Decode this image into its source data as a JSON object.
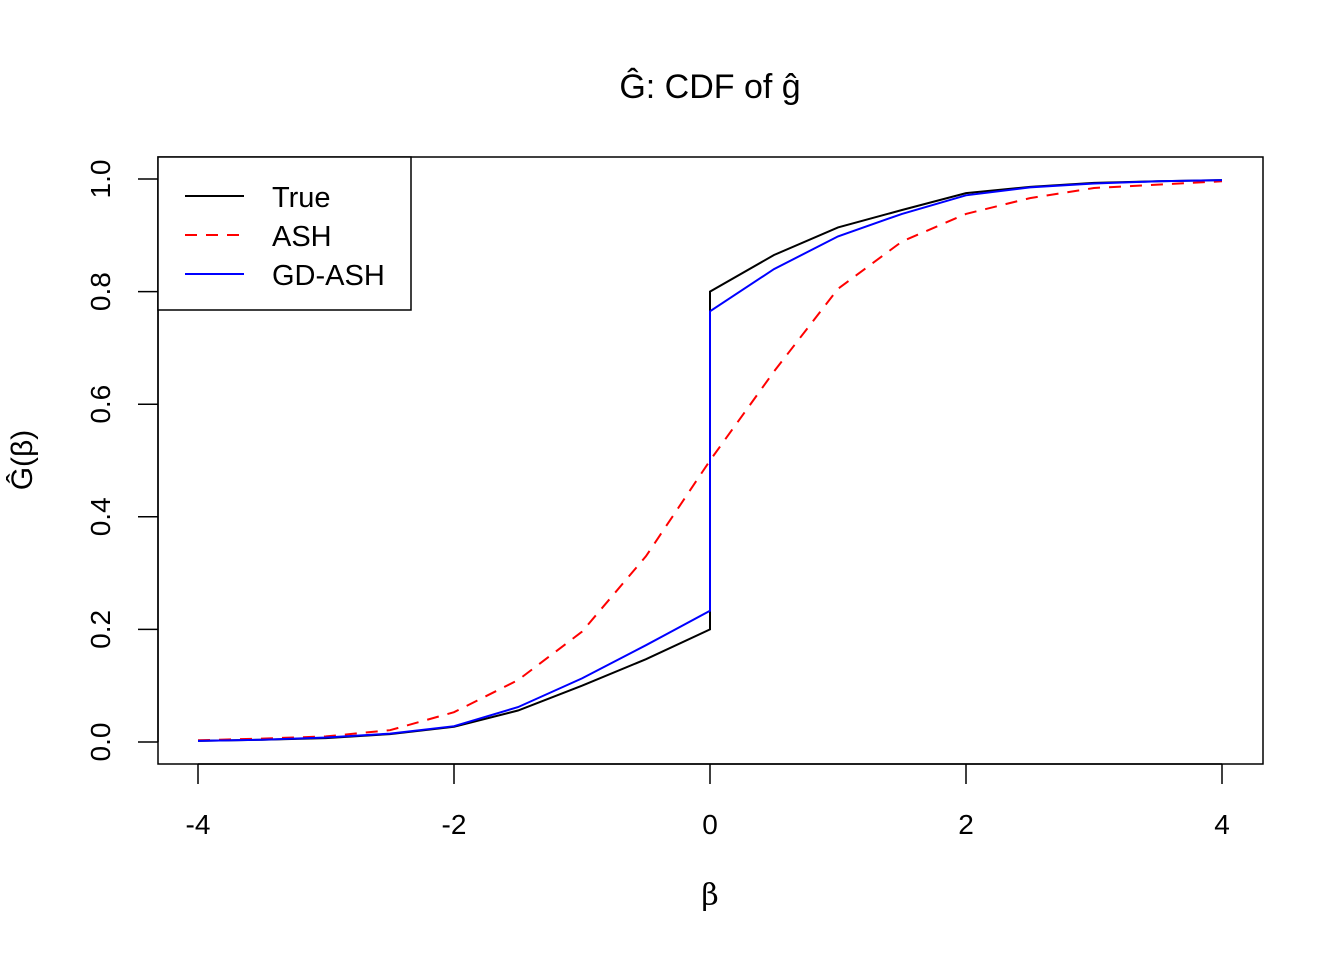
{
  "chart_data": {
    "type": "line",
    "title": "Ĝ: CDF of ĝ",
    "xlabel": "β",
    "ylabel": "Ĝ(β)",
    "xlim": [
      -4.3,
      4.3
    ],
    "ylim": [
      -0.04,
      1.04
    ],
    "xticks": [
      -4,
      -2,
      0,
      2,
      4
    ],
    "xtick_labels": [
      "-4",
      "-2",
      "0",
      "2",
      "4"
    ],
    "yticks": [
      0,
      0.2,
      0.4,
      0.6,
      0.8,
      1.0
    ],
    "ytick_labels": [
      "0.0",
      "0.2",
      "0.4",
      "0.6",
      "0.8",
      "1.0"
    ],
    "grid": false,
    "legend_position": "top-left",
    "series": [
      {
        "name": "True",
        "color": "#000000",
        "dash": "solid",
        "x": [
          -4,
          -3.5,
          -3,
          -2.5,
          -2,
          -1.5,
          -1,
          -0.5,
          0,
          0,
          0.5,
          1,
          1.5,
          2,
          2.5,
          3,
          3.5,
          4
        ],
        "y": [
          0.002,
          0.004,
          0.007,
          0.014,
          0.027,
          0.056,
          0.1,
          0.147,
          0.2,
          0.8,
          0.865,
          0.914,
          0.945,
          0.975,
          0.986,
          0.993,
          0.996,
          0.998
        ]
      },
      {
        "name": "ASH",
        "color": "#ff0000",
        "dash": "dashed",
        "x": [
          -4,
          -3.5,
          -3,
          -2.5,
          -2,
          -1.5,
          -1,
          -0.5,
          0,
          0.5,
          1,
          1.5,
          2,
          2.5,
          3,
          3.5,
          4
        ],
        "y": [
          0.003,
          0.006,
          0.01,
          0.021,
          0.053,
          0.11,
          0.196,
          0.33,
          0.5,
          0.658,
          0.805,
          0.889,
          0.938,
          0.966,
          0.984,
          0.99,
          0.996
        ]
      },
      {
        "name": "GD-ASH",
        "color": "#0000ff",
        "dash": "solid",
        "x": [
          -4,
          -3.5,
          -3,
          -2.5,
          -2,
          -1.5,
          -1,
          -0.5,
          0,
          0,
          0.5,
          1,
          1.5,
          2,
          2.5,
          3,
          3.5,
          4
        ],
        "y": [
          0.002,
          0.004,
          0.008,
          0.015,
          0.028,
          0.062,
          0.113,
          0.172,
          0.233,
          0.765,
          0.84,
          0.898,
          0.938,
          0.971,
          0.985,
          0.992,
          0.996,
          0.998
        ]
      }
    ]
  }
}
